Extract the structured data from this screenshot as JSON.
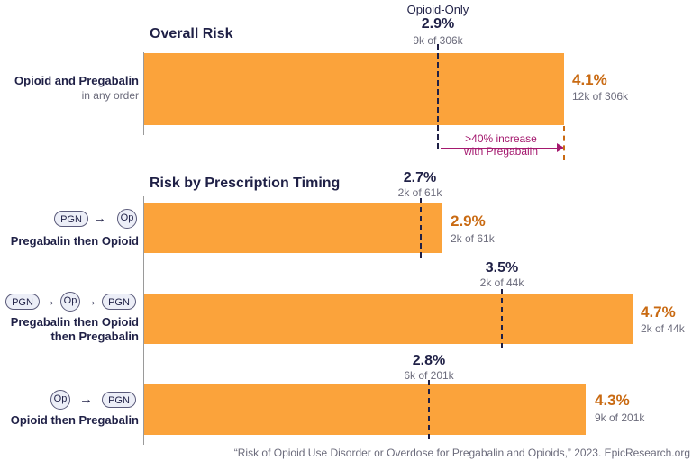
{
  "chart_data": [
    {
      "type": "bar",
      "title": "Overall Risk",
      "categories": [
        "Opioid and Pregabalin in any order"
      ],
      "series": [
        {
          "values": [
            4.1
          ]
        }
      ],
      "value_labels": [
        "4.1%"
      ],
      "count_labels": [
        "12k of 306k"
      ],
      "reference": {
        "label": "Opioid-Only",
        "value": 2.9,
        "value_label": "2.9%",
        "count_label": "9k of 306k"
      },
      "annotation": ">40% increase with Pregabalin",
      "xlim": [
        0,
        5
      ]
    },
    {
      "type": "bar",
      "title": "Risk by Prescription Timing",
      "categories": [
        "Pregabalin then Opioid",
        "Pregabalin then Opioid then Pregabalin",
        "Opioid then Pregabalin"
      ],
      "series": [
        {
          "values": [
            2.9,
            4.7,
            4.3
          ]
        }
      ],
      "value_labels": [
        "2.9%",
        "4.7%",
        "4.3%"
      ],
      "count_labels": [
        "2k of 61k",
        "2k of 44k",
        "9k of 201k"
      ],
      "reference_values": [
        2.7,
        3.5,
        2.8
      ],
      "reference_value_labels": [
        "2.7%",
        "3.5%",
        "2.8%"
      ],
      "reference_count_labels": [
        "2k of 61k",
        "2k of 44k",
        "6k of 201k"
      ],
      "xlim": [
        0,
        5
      ]
    }
  ],
  "labels": {
    "overall_title": "Overall Risk",
    "timing_title": "Risk by Prescription Timing",
    "overall_row_l1": "Opioid and Pregabalin",
    "overall_row_l2": "in any order",
    "ref_label": "Opioid-Only",
    "note_l1": ">40% increase",
    "note_l2": "with Pregabalin",
    "row1_label": "Pregabalin then Opioid",
    "row2_label_l1": "Pregabalin then Opioid",
    "row2_label_l2": "then Pregabalin",
    "row3_label": "Opioid then Pregabalin",
    "pgn": "PGN",
    "op": "Op",
    "arrow": "→",
    "source": "“Risk of Opioid Use Disorder or Overdose for Pregabalin and Opioids,” 2023. EpicResearch.org"
  },
  "colors": {
    "bar": "#fba33b",
    "pct": "#c96a12",
    "ref_line": "#1f2046",
    "note": "#a4186e",
    "axis": "#999999"
  }
}
